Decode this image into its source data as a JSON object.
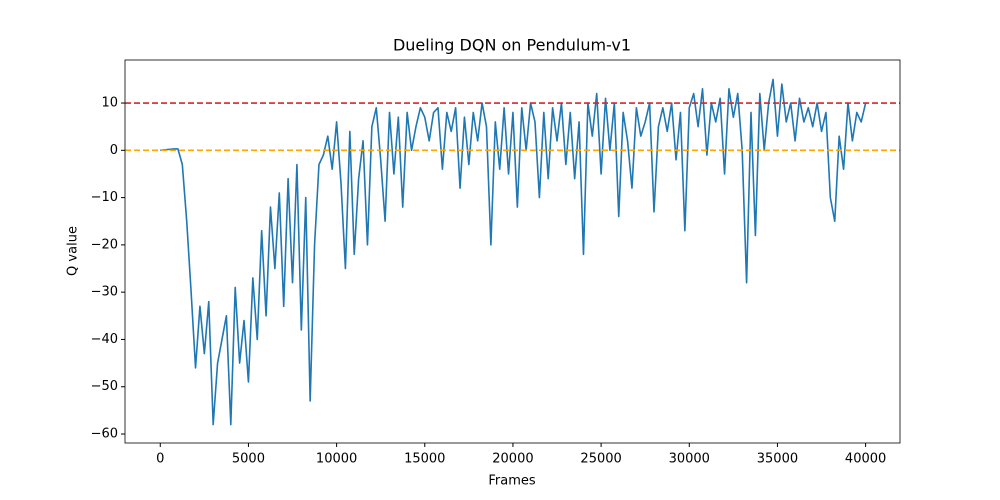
{
  "chart_data": {
    "type": "line",
    "title": "Dueling DQN on Pendulum-v1",
    "xlabel": "Frames",
    "ylabel": "Q value",
    "x": [
      0,
      250,
      500,
      750,
      1000,
      1250,
      1500,
      1750,
      2000,
      2250,
      2500,
      2750,
      3000,
      3250,
      3500,
      3750,
      4000,
      4250,
      4500,
      4750,
      5000,
      5250,
      5500,
      5750,
      6000,
      6250,
      6500,
      6750,
      7000,
      7250,
      7500,
      7750,
      8000,
      8250,
      8500,
      8750,
      9000,
      9250,
      9500,
      9750,
      10000,
      10250,
      10500,
      10750,
      11000,
      11250,
      11500,
      11750,
      12000,
      12250,
      12500,
      12750,
      13000,
      13250,
      13500,
      13750,
      14000,
      14250,
      14500,
      14750,
      15000,
      15250,
      15500,
      15750,
      16000,
      16250,
      16500,
      16750,
      17000,
      17250,
      17500,
      17750,
      18000,
      18250,
      18500,
      18750,
      19000,
      19250,
      19500,
      19750,
      20000,
      20250,
      20500,
      20750,
      21000,
      21250,
      21500,
      21750,
      22000,
      22250,
      22500,
      22750,
      23000,
      23250,
      23500,
      23750,
      24000,
      24250,
      24500,
      24750,
      25000,
      25250,
      25500,
      25750,
      26000,
      26250,
      26500,
      26750,
      27000,
      27250,
      27500,
      27750,
      28000,
      28250,
      28500,
      28750,
      29000,
      29250,
      29500,
      29750,
      30000,
      30250,
      30500,
      30750,
      31000,
      31250,
      31500,
      31750,
      32000,
      32250,
      32500,
      32750,
      33000,
      33250,
      33500,
      33750,
      34000,
      34250,
      34500,
      34750,
      35000,
      35250,
      35500,
      35750,
      36000,
      36250,
      36500,
      36750,
      37000,
      37250,
      37500,
      37750,
      38000,
      38250,
      38500,
      38750,
      39000,
      39250,
      39500,
      39750,
      40000
    ],
    "series": [
      {
        "color": "#1f77b4",
        "values": [
          0,
          0.1,
          0.2,
          0.3,
          0.3,
          -3,
          -15,
          -30,
          -46,
          -33,
          -43,
          -32,
          -58,
          -45,
          -40,
          -35,
          -58,
          -29,
          -45,
          -36,
          -49,
          -27,
          -40,
          -17,
          -35,
          -12,
          -25,
          -9,
          -33,
          -6,
          -28,
          -3,
          -38,
          -10,
          -53,
          -20,
          -3,
          -1,
          3,
          -4,
          6,
          -7,
          -25,
          4,
          -22,
          -6,
          2,
          -20,
          5,
          9,
          -2,
          -15,
          8,
          -5,
          7,
          -12,
          8,
          0,
          5,
          9,
          7,
          2,
          8,
          9,
          -4,
          8,
          4,
          9,
          -8,
          7,
          -3,
          8,
          2,
          10,
          5,
          -20,
          6,
          -4,
          9,
          -5,
          8,
          -12,
          9,
          0,
          10,
          6,
          -10,
          8,
          -6,
          9,
          2,
          10,
          -3,
          8,
          -6,
          6,
          -22,
          10,
          3,
          12,
          -5,
          11,
          0,
          10,
          -14,
          8,
          2,
          -8,
          9,
          3,
          6,
          10,
          -13,
          5,
          9,
          4,
          10,
          -2,
          8,
          -17,
          9,
          12,
          5,
          13,
          -1,
          10,
          6,
          11,
          -5,
          13,
          7,
          12,
          0,
          -28,
          8,
          -18,
          12,
          0,
          10,
          15,
          3,
          14,
          6,
          10,
          2,
          11,
          6,
          9,
          5,
          10,
          4,
          8,
          -10,
          -15,
          3,
          -4,
          10,
          2,
          8,
          6,
          10
        ]
      }
    ],
    "hlines": [
      {
        "value": 10,
        "color": "#d62728"
      },
      {
        "value": 0,
        "color": "#ffa500"
      }
    ],
    "xlim": [
      -2000,
      41950
    ],
    "ylim": [
      -61.9,
      19.1
    ],
    "xticks": [
      0,
      5000,
      10000,
      15000,
      20000,
      25000,
      30000,
      35000,
      40000
    ],
    "yticks": [
      {
        "value": -60,
        "label": "−60"
      },
      {
        "value": -50,
        "label": "−50"
      },
      {
        "value": -40,
        "label": "−40"
      },
      {
        "value": -30,
        "label": "−30"
      },
      {
        "value": -20,
        "label": "−20"
      },
      {
        "value": -10,
        "label": "−10"
      },
      0,
      10
    ]
  }
}
